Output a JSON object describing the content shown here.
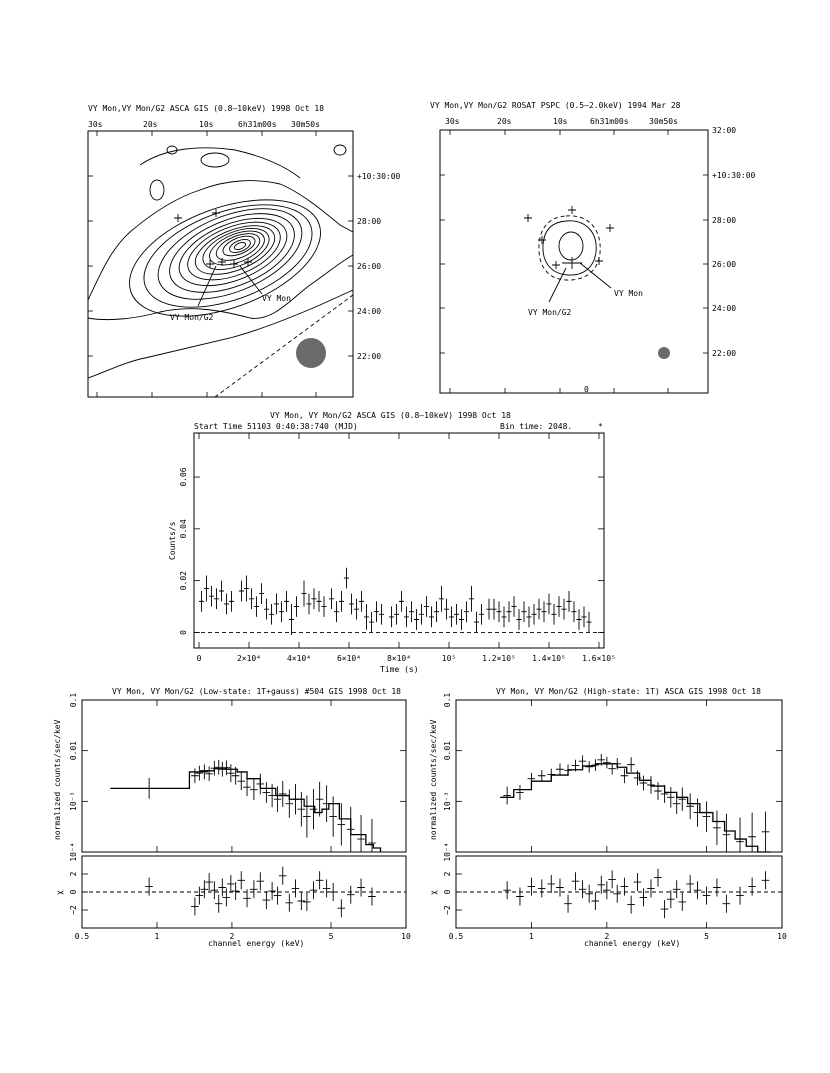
{
  "image_panels": {
    "gis": {
      "title": "VY Mon,VY Mon/G2  ASCA GIS (0.8–10keV)  1998 Oct 18",
      "ra_ticks": [
        "30s",
        "20s",
        "10s",
        "6h31m00s",
        "30m50s"
      ],
      "dec_ticks": [
        "+10:30:00",
        "28:00",
        "26:00",
        "24:00",
        "22:00"
      ],
      "labels": [
        "VY Mon",
        "VY Mon/G2"
      ]
    },
    "pspc": {
      "title": "VY Mon,VY Mon/G2  ROSAT PSPC (0.5–2.0keV)  1994 Mar 28",
      "ra_ticks": [
        "30s",
        "20s",
        "10s",
        "6h31m00s",
        "30m50s"
      ],
      "dec_ticks": [
        "32:00",
        "+10:30:00",
        "28:00",
        "26:00",
        "24:00",
        "22:00"
      ],
      "labels": [
        "VY Mon",
        "VY Mon/G2"
      ],
      "bottom_mark": "0"
    }
  },
  "chart_data": [
    {
      "type": "scatter",
      "panel": "lightcurve",
      "title": "VY Mon, VY Mon/G2   ASCA GIS (0.8–10keV)  1998 Oct 18",
      "subtitle_left": "Start Time 51103  0:40:38:740 (MJD)",
      "subtitle_right": "Bin time:    2048.",
      "xlabel": "Time (s)",
      "ylabel": "Counts/s",
      "xlim": [
        -2000,
        162000
      ],
      "ylim": [
        -0.006,
        0.077
      ],
      "x_ticks": [
        "0",
        "2×10⁴",
        "4×10⁴",
        "6×10⁴",
        "8×10⁴",
        "10⁵",
        "1.2×10⁵",
        "1.4×10⁵",
        "1.6×10⁵"
      ],
      "x_tick_values": [
        0,
        20000,
        40000,
        60000,
        80000,
        100000,
        120000,
        140000,
        160000
      ],
      "y_ticks": [
        "0",
        "0.02",
        "0.04",
        "0.06"
      ],
      "y_tick_values": [
        0,
        0.02,
        0.04,
        0.06
      ],
      "zero_line": 0,
      "x": [
        1000,
        3000,
        5000,
        7000,
        9000,
        11000,
        13000,
        17000,
        19000,
        21000,
        23000,
        25000,
        27000,
        29000,
        31000,
        33000,
        35000,
        37000,
        39000,
        42000,
        44000,
        46000,
        48000,
        50000,
        53000,
        55000,
        57000,
        59000,
        61000,
        63000,
        65000,
        67000,
        69000,
        71000,
        73000,
        77000,
        79000,
        81000,
        83000,
        85000,
        87000,
        89000,
        91000,
        93000,
        95000,
        97000,
        99000,
        101000,
        103000,
        105000,
        107000,
        109000,
        111000,
        113000,
        116000,
        118000,
        120000,
        122000,
        124000,
        126000,
        128000,
        130000,
        132000,
        134000,
        136000,
        138000,
        140000,
        142000,
        144000,
        146000,
        148000,
        150000,
        152000,
        154000,
        156000
      ],
      "y": [
        0.012,
        0.017,
        0.014,
        0.013,
        0.016,
        0.011,
        0.012,
        0.016,
        0.017,
        0.013,
        0.01,
        0.015,
        0.009,
        0.007,
        0.011,
        0.008,
        0.012,
        0.005,
        0.01,
        0.015,
        0.011,
        0.013,
        0.012,
        0.01,
        0.013,
        0.008,
        0.012,
        0.021,
        0.011,
        0.009,
        0.012,
        0.006,
        0.004,
        0.008,
        0.007,
        0.006,
        0.007,
        0.012,
        0.006,
        0.008,
        0.005,
        0.007,
        0.01,
        0.006,
        0.008,
        0.013,
        0.009,
        0.006,
        0.007,
        0.005,
        0.008,
        0.013,
        0.004,
        0.007,
        0.009,
        0.009,
        0.008,
        0.006,
        0.008,
        0.01,
        0.005,
        0.008,
        0.006,
        0.007,
        0.009,
        0.008,
        0.011,
        0.007,
        0.01,
        0.009,
        0.012,
        0.008,
        0.005,
        0.006,
        0.004
      ],
      "yerr": [
        0.004,
        0.005,
        0.004,
        0.004,
        0.004,
        0.004,
        0.004,
        0.004,
        0.005,
        0.004,
        0.004,
        0.004,
        0.004,
        0.004,
        0.004,
        0.004,
        0.004,
        0.006,
        0.004,
        0.005,
        0.004,
        0.004,
        0.004,
        0.004,
        0.004,
        0.004,
        0.004,
        0.004,
        0.004,
        0.004,
        0.004,
        0.005,
        0.004,
        0.004,
        0.004,
        0.004,
        0.004,
        0.004,
        0.004,
        0.004,
        0.004,
        0.004,
        0.004,
        0.004,
        0.004,
        0.005,
        0.004,
        0.004,
        0.004,
        0.004,
        0.004,
        0.005,
        0.004,
        0.004,
        0.004,
        0.004,
        0.004,
        0.004,
        0.004,
        0.004,
        0.004,
        0.004,
        0.004,
        0.004,
        0.004,
        0.004,
        0.004,
        0.004,
        0.004,
        0.004,
        0.004,
        0.004,
        0.004,
        0.004,
        0.004
      ]
    },
    {
      "type": "scatter",
      "panel": "spectrum_low",
      "title": "VY Mon, VY Mon/G2 (Low-state: 1T+gauss)   #504 GIS    1998 Oct 18",
      "xlabel": "channel energy (keV)",
      "ylabel": "normalized counts/sec/keV",
      "resid_label": "χ",
      "log_x": true,
      "log_y": true,
      "xlim": [
        0.5,
        10
      ],
      "ylim": [
        0.0001,
        0.1
      ],
      "resid_ylim": [
        -4,
        4
      ],
      "x_ticks": [
        "0.5",
        "1",
        "2",
        "5",
        "10"
      ],
      "x_tick_values": [
        0.5,
        1,
        2,
        5,
        10
      ],
      "y_ticks": [
        "10⁻⁴",
        "10⁻³",
        "0.01",
        "0.1"
      ],
      "y_tick_values": [
        0.0001,
        0.001,
        0.01,
        0.1
      ],
      "resid_ticks": [
        "−2",
        "0",
        "2"
      ],
      "resid_tick_values": [
        -2,
        0,
        2
      ],
      "model_x": [
        0.65,
        1.35,
        1.35,
        1.5,
        1.7,
        1.9,
        2.1,
        2.3,
        2.6,
        3.0,
        3.4,
        3.9,
        4.3,
        4.6,
        4.9,
        5.4,
        6.0,
        6.4,
        6.9,
        7.4,
        7.9
      ],
      "model_y": [
        0.0018,
        0.0018,
        0.0038,
        0.004,
        0.0044,
        0.0043,
        0.0038,
        0.0028,
        0.0018,
        0.0013,
        0.0011,
        0.0008,
        0.0006,
        0.0007,
        0.0009,
        0.00045,
        0.00022,
        0.00022,
        0.00014,
        0.00012,
        0.0001
      ],
      "x": [
        0.93,
        1.42,
        1.48,
        1.55,
        1.62,
        1.7,
        1.77,
        1.83,
        1.9,
        1.98,
        2.07,
        2.18,
        2.3,
        2.45,
        2.6,
        2.75,
        2.9,
        3.05,
        3.2,
        3.4,
        3.6,
        3.8,
        4.0,
        4.25,
        4.5,
        4.8,
        5.1,
        5.5,
        6.0,
        6.6,
        7.3
      ],
      "y": [
        0.0018,
        0.0032,
        0.0036,
        0.0038,
        0.0035,
        0.0045,
        0.0047,
        0.0043,
        0.0046,
        0.0036,
        0.0032,
        0.0025,
        0.0019,
        0.0017,
        0.0022,
        0.0015,
        0.0013,
        0.0011,
        0.0014,
        0.0009,
        0.0011,
        0.0007,
        0.0005,
        0.0007,
        0.0011,
        0.0009,
        0.0005,
        0.00035,
        0.00028,
        0.00018,
        0.00015
      ],
      "yerr_factor": [
        1.6,
        1.4,
        1.4,
        1.4,
        1.4,
        1.4,
        1.4,
        1.4,
        1.4,
        1.5,
        1.5,
        1.5,
        1.5,
        1.6,
        1.6,
        1.6,
        1.7,
        1.8,
        1.8,
        1.9,
        2.0,
        2.2,
        2.6,
        2.5,
        2.2,
        2.3,
        2.5,
        2.6,
        2.8,
        3.0,
        3.0
      ],
      "resid": [
        0.6,
        -1.6,
        -0.4,
        0.3,
        1.1,
        0.2,
        -1.3,
        0.5,
        -0.6,
        0.9,
        0.1,
        1.3,
        -0.7,
        0.3,
        1.2,
        -0.9,
        0.1,
        -0.4,
        1.8,
        -1.2,
        0.4,
        -1.0,
        -1.1,
        0.2,
        1.3,
        0.4,
        0.0,
        -1.8,
        -0.3,
        0.5,
        -0.5
      ]
    },
    {
      "type": "scatter",
      "panel": "spectrum_high",
      "title": "VY Mon, VY Mon/G2 (High-state: 1T)    ASCA GIS    1998 Oct 18",
      "xlabel": "channel energy (keV)",
      "ylabel": "normalized counts/sec/keV",
      "resid_label": "χ",
      "log_x": true,
      "log_y": true,
      "xlim": [
        0.5,
        10
      ],
      "ylim": [
        0.0001,
        0.1
      ],
      "resid_ylim": [
        -4,
        4
      ],
      "x_ticks": [
        "0.5",
        "1",
        "2",
        "5",
        "10"
      ],
      "x_tick_values": [
        0.5,
        1,
        2,
        5,
        10
      ],
      "y_ticks": [
        "10⁻⁴",
        "10⁻³",
        "0.01",
        "0.1"
      ],
      "y_tick_values": [
        0.0001,
        0.001,
        0.01,
        0.1
      ],
      "resid_ticks": [
        "−2",
        "0",
        "2"
      ],
      "resid_tick_values": [
        -2,
        0,
        2
      ],
      "model_x": [
        0.75,
        0.85,
        1.0,
        1.2,
        1.4,
        1.6,
        1.8,
        2.0,
        2.2,
        2.4,
        2.7,
        3.0,
        3.4,
        3.8,
        4.2,
        4.7,
        5.3,
        5.9,
        6.5,
        7.2,
        8.0,
        9.0
      ],
      "model_y": [
        0.0012,
        0.0017,
        0.0025,
        0.0033,
        0.0042,
        0.005,
        0.0055,
        0.0055,
        0.0047,
        0.0036,
        0.0026,
        0.002,
        0.0015,
        0.0012,
        0.0009,
        0.0006,
        0.0004,
        0.00026,
        0.00018,
        0.00013,
        9e-05,
        6e-05
      ],
      "x": [
        0.8,
        0.9,
        1.0,
        1.1,
        1.2,
        1.3,
        1.4,
        1.5,
        1.6,
        1.7,
        1.8,
        1.9,
        2.0,
        2.1,
        2.2,
        2.35,
        2.5,
        2.65,
        2.8,
        3.0,
        3.2,
        3.4,
        3.6,
        3.8,
        4.0,
        4.3,
        4.6,
        5.0,
        5.5,
        6.0,
        6.8,
        7.6,
        8.6
      ],
      "y": [
        0.0013,
        0.0015,
        0.0028,
        0.0032,
        0.0034,
        0.0043,
        0.0041,
        0.0051,
        0.0062,
        0.0048,
        0.0052,
        0.0066,
        0.0058,
        0.0044,
        0.0055,
        0.0032,
        0.0053,
        0.0029,
        0.0023,
        0.0021,
        0.0016,
        0.0014,
        0.0012,
        0.0009,
        0.0011,
        0.0008,
        0.0006,
        0.0005,
        0.0003,
        0.00022,
        0.00016,
        0.0002,
        0.00025
      ],
      "yerr_factor": [
        1.5,
        1.4,
        1.3,
        1.3,
        1.3,
        1.3,
        1.3,
        1.3,
        1.3,
        1.3,
        1.3,
        1.3,
        1.3,
        1.3,
        1.3,
        1.4,
        1.4,
        1.4,
        1.4,
        1.5,
        1.5,
        1.5,
        1.6,
        1.6,
        1.7,
        1.8,
        1.9,
        2.0,
        2.2,
        2.6,
        3.0,
        3.0,
        2.5
      ],
      "resid": [
        0.2,
        -0.5,
        0.6,
        0.4,
        0.9,
        0.5,
        -1.3,
        1.2,
        0.3,
        -0.2,
        -1.0,
        0.8,
        0.2,
        1.4,
        -0.2,
        0.6,
        -1.4,
        1.1,
        -0.6,
        0.4,
        1.6,
        -1.9,
        -0.8,
        0.3,
        -1.1,
        0.9,
        0.2,
        -0.4,
        0.5,
        -1.3,
        -0.4,
        0.6,
        1.3
      ]
    }
  ]
}
